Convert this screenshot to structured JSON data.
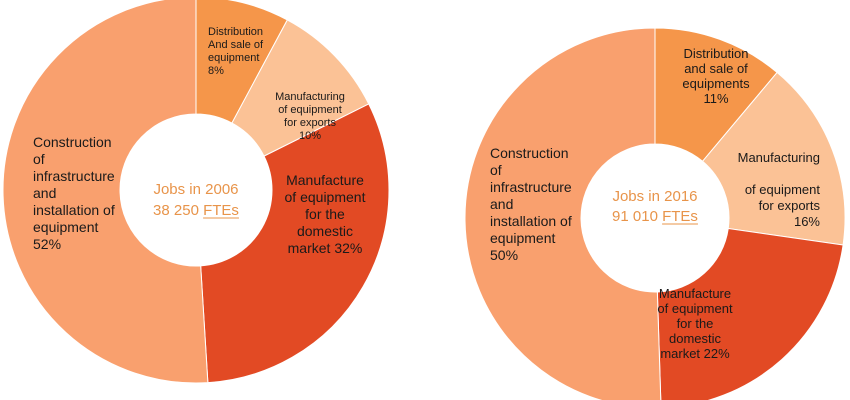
{
  "colors": {
    "construction": "#f9a06e",
    "distribution": "#f5964a",
    "exports": "#fbc296",
    "domestic": "#e24a24",
    "center_text": "#e8944a"
  },
  "chart_data": [
    {
      "type": "pie",
      "variant": "donut",
      "center_label": [
        "Jobs in 2006",
        "38 250 FTEs"
      ],
      "slices": [
        {
          "key": "distribution",
          "label": [
            "Distribution",
            "And sale of",
            "equipment",
            "8%"
          ],
          "value": 8
        },
        {
          "key": "exports",
          "label": [
            "Manufacturing",
            "of equipment",
            "for exports",
            "10%"
          ],
          "value": 10
        },
        {
          "key": "domestic",
          "label": [
            "Manufacture",
            "of equipment",
            "for the",
            "domestic",
            "market 32%"
          ],
          "value": 32
        },
        {
          "key": "construction",
          "label": [
            "Construction",
            "of",
            "infrastructure",
            "and",
            "installation of",
            "equipment",
            "52%"
          ],
          "value": 52
        }
      ]
    },
    {
      "type": "pie",
      "variant": "donut",
      "center_label": [
        "Jobs in 2016",
        "91 010 FTEs"
      ],
      "slices": [
        {
          "key": "distribution",
          "label": [
            "Distribution",
            "and sale of",
            "equipments",
            "11%"
          ],
          "value": 11
        },
        {
          "key": "exports",
          "label": [
            "Manufacturing",
            "",
            "of equipment",
            "for exports",
            "16%"
          ],
          "value": 16
        },
        {
          "key": "domestic",
          "label": [
            "Manufacture",
            "of equipment",
            "for the",
            "domestic",
            "market 22%"
          ],
          "value": 22
        },
        {
          "key": "construction",
          "label": [
            "Construction",
            "of",
            "infrastructure",
            "and",
            "installation of",
            "equipment",
            "50%"
          ],
          "value": 50
        }
      ]
    }
  ]
}
